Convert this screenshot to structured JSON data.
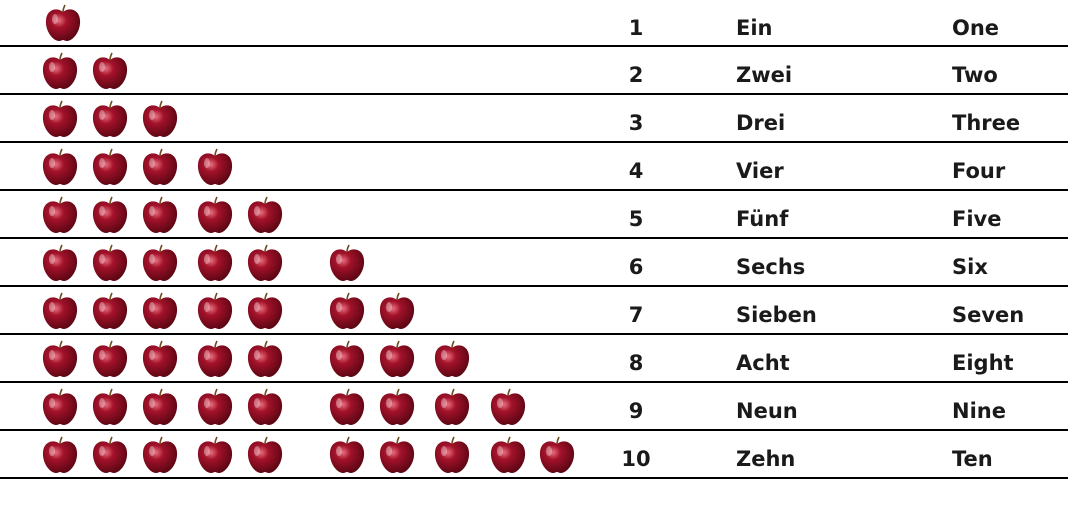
{
  "colors": {
    "apple_body": "#a3122a",
    "apple_dark": "#5e0614",
    "apple_highlight": "#e8707e",
    "stem": "#6b4a1e",
    "rule_line": "#000000",
    "text": "#1a1a1a"
  },
  "icon": "apple-icon",
  "rows": [
    {
      "count": 1,
      "number": "1",
      "german": "Ein",
      "english": "One"
    },
    {
      "count": 2,
      "number": "2",
      "german": "Zwei",
      "english": "Two"
    },
    {
      "count": 3,
      "number": "3",
      "german": "Drei",
      "english": "Three"
    },
    {
      "count": 4,
      "number": "4",
      "german": "Vier",
      "english": "Four"
    },
    {
      "count": 5,
      "number": "5",
      "german": "Fünf",
      "english": "Five"
    },
    {
      "count": 6,
      "number": "6",
      "german": "Sechs",
      "english": "Six"
    },
    {
      "count": 7,
      "number": "7",
      "german": "Sieben",
      "english": "Seven"
    },
    {
      "count": 8,
      "number": "8",
      "german": "Acht",
      "english": "Eight"
    },
    {
      "count": 9,
      "number": "9",
      "german": "Neun",
      "english": "Nine"
    },
    {
      "count": 10,
      "number": "10",
      "german": "Zehn",
      "english": "Ten"
    }
  ]
}
